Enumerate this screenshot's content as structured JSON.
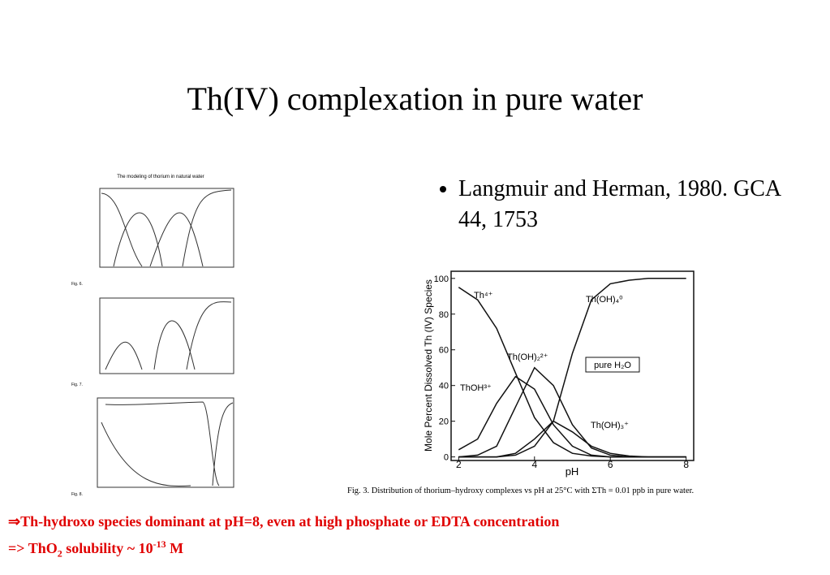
{
  "title": "Th(IV) complexation in pure water",
  "bullet": "Langmuir and Herman, 1980. GCA 44, 1753",
  "thumbnails": {
    "heading": "The modeling of thorium in natural water",
    "figures": [
      "Fig. 6.",
      "Fig. 7.",
      "Fig. 8."
    ]
  },
  "chart_data": {
    "type": "line",
    "x_label": "pH",
    "y_label": "Mole Percent Dissolved  Th (IV) Species",
    "x": [
      2,
      2.5,
      3,
      3.5,
      4,
      4.5,
      5,
      5.5,
      6,
      6.5,
      7,
      7.5,
      8
    ],
    "series": [
      {
        "name": "Th⁴⁺",
        "color": "#111111",
        "values": [
          95,
          88,
          72,
          47,
          22,
          8,
          2,
          0.5,
          0,
          0,
          0,
          0,
          0
        ]
      },
      {
        "name": "ThOH³⁺",
        "color": "#111111",
        "values": [
          4,
          10,
          30,
          45,
          38,
          18,
          6,
          1,
          0,
          0,
          0,
          0,
          0
        ]
      },
      {
        "name": "Th(OH)₂²⁺",
        "color": "#111111",
        "values": [
          0,
          1,
          6,
          28,
          50,
          40,
          18,
          5,
          1,
          0,
          0,
          0,
          0
        ]
      },
      {
        "name": "Th(OH)₃⁺",
        "color": "#111111",
        "values": [
          0,
          0,
          0,
          2,
          10,
          20,
          14,
          6,
          2,
          0.5,
          0,
          0,
          0
        ]
      },
      {
        "name": "Th(OH)₄⁰",
        "color": "#111111",
        "values": [
          0,
          0,
          0,
          1,
          6,
          20,
          58,
          88,
          97,
          99,
          100,
          100,
          100
        ]
      }
    ],
    "annotation": "pure H₂O",
    "xlim": [
      1.8,
      8.2
    ],
    "xticks": [
      2,
      4,
      6,
      8
    ],
    "ylim": [
      -2,
      104
    ],
    "yticks": [
      0,
      20,
      40,
      60,
      80,
      100
    ],
    "caption": "Fig. 3. Distribution of thorium–hydroxy complexes vs pH at 25°C with ΣTh = 0.01 ppb in pure water."
  },
  "notes": {
    "line1": "⇒Th-hydroxo species dominant at pH=8, even at high phosphate or EDTA concentration",
    "line2": [
      "=> ThO",
      "2",
      " solubility ~ 10",
      "-13",
      " M"
    ]
  }
}
